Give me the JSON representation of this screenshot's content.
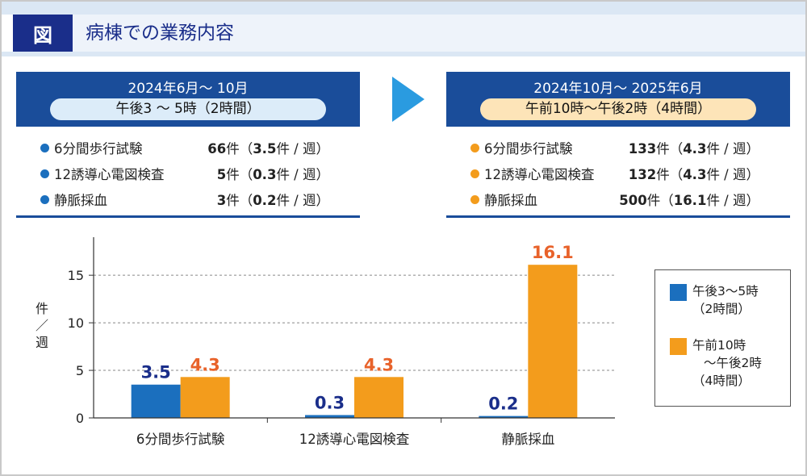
{
  "header": {
    "tag": "図",
    "title": "病棟での業務内容"
  },
  "panels": [
    {
      "period": "2024年6月～ 10月",
      "hours": "午後3 ～ 5時（2時間）",
      "items": [
        {
          "label": "6分間歩行試験",
          "count": "66",
          "unit": "件（",
          "rate": "3.5",
          "rate_unit": "件 / 週）"
        },
        {
          "label": "12誘導心電図検査",
          "count": "5",
          "unit": "件（",
          "rate": "0.3",
          "rate_unit": "件 / 週）"
        },
        {
          "label": "静脈採血",
          "count": "3",
          "unit": "件（",
          "rate": "0.2",
          "rate_unit": "件 / 週）"
        }
      ]
    },
    {
      "period": "2024年10月～ 2025年6月",
      "hours": "午前10時～午後2時（4時間）",
      "items": [
        {
          "label": "6分間歩行試験",
          "count": "133",
          "unit": "件（",
          "rate": "4.3",
          "rate_unit": "件 / 週）"
        },
        {
          "label": "12誘導心電図検査",
          "count": "132",
          "unit": "件（",
          "rate": "4.3",
          "rate_unit": "件 / 週）"
        },
        {
          "label": "静脈採血",
          "count": "500",
          "unit": "件（",
          "rate": "16.1",
          "rate_unit": "件 / 週）"
        }
      ]
    }
  ],
  "chart_data": {
    "type": "bar",
    "categories": [
      "6分間歩行試験",
      "12誘導心電図検査",
      "静脈採血"
    ],
    "series": [
      {
        "name": "午後3～5時（2時間）",
        "values": [
          3.5,
          0.3,
          0.2
        ],
        "color": "#1b6fbe",
        "label_color": "#1a2e8a"
      },
      {
        "name": "午前10時～午後2時（4時間）",
        "values": [
          4.3,
          4.3,
          16.1
        ],
        "color": "#f39c1c",
        "label_color": "#e8622a"
      }
    ],
    "ylabel": "件／週",
    "yticks": [
      0,
      5,
      10,
      15
    ],
    "ylim": [
      0,
      19
    ],
    "grid": "horizontal dashed",
    "legend_position": "right"
  },
  "legend": {
    "entries": [
      {
        "lines": [
          "午後3～5時",
          "（2時間）"
        ]
      },
      {
        "lines": [
          "午前10時",
          "～午後2時",
          "（4時間）"
        ]
      }
    ]
  },
  "colors": {
    "navy": "#1a2e8a",
    "panel_blue": "#1a4d9a",
    "blue": "#1b6fbe",
    "orange": "#f39c1c",
    "accent_orange": "#e8622a",
    "arrow": "#2a9be0"
  }
}
